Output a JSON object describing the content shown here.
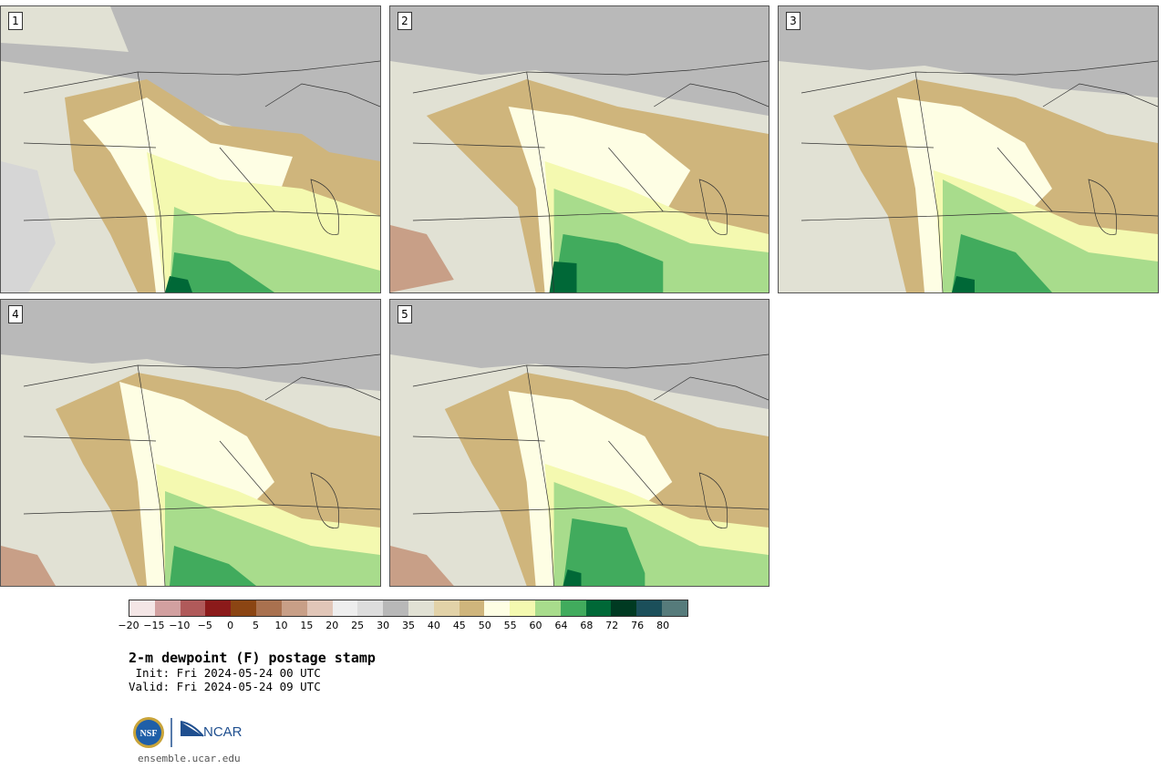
{
  "title": "2-m dewpoint (F) postage stamp",
  "init": " Init: Fri 2024-05-24 00 UTC",
  "valid": "Valid: Fri 2024-05-24 09 UTC",
  "members": [
    "1",
    "2",
    "3",
    "4",
    "5"
  ],
  "colorbar": {
    "colors": [
      "#f4e6e6",
      "#d2a0a0",
      "#b05a5a",
      "#8b1a1a",
      "#8b4513",
      "#a9714f",
      "#c89f87",
      "#e1c6b8",
      "#eeeeee",
      "#dddddd",
      "#b8b8b8",
      "#e1e1d4",
      "#e2d2a8",
      "#cfb57c",
      "#fefee4",
      "#f4f9b0",
      "#a8dc8c",
      "#41ab5d",
      "#006837",
      "#003a22",
      "#1b4f5a",
      "#567b7b"
    ],
    "ticks": [
      "−20",
      "−15",
      "−10",
      "−5",
      "0",
      "5",
      "10",
      "15",
      "20",
      "25",
      "30",
      "35",
      "40",
      "45",
      "50",
      "55",
      "60",
      "64",
      "68",
      "72",
      "76",
      "80"
    ]
  },
  "logo": {
    "nsf": "NSF",
    "ncar": "NCAR"
  },
  "website": "ensemble.ucar.edu"
}
